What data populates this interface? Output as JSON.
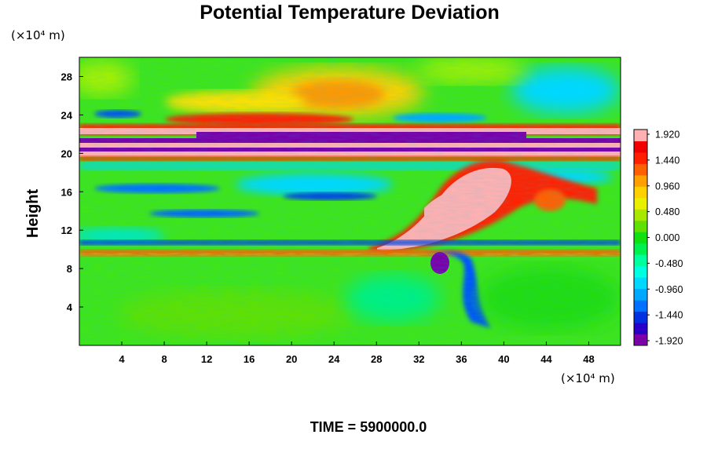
{
  "chart_data": {
    "type": "heatmap",
    "title": "Potential Temperature Deviation",
    "ylabel": "Height",
    "x_unit": "(×10⁴ m)",
    "y_unit": "(×10⁴ m)",
    "xlim": [
      0,
      51
    ],
    "ylim": [
      0,
      30
    ],
    "x_ticks": [
      4,
      8,
      12,
      16,
      20,
      24,
      28,
      32,
      36,
      40,
      44,
      48
    ],
    "y_ticks": [
      4,
      8,
      12,
      16,
      20,
      24,
      28
    ],
    "x_tick_labels": [
      "4",
      "8",
      "12",
      "16",
      "20",
      "24",
      "28",
      "32",
      "36",
      "40",
      "44",
      "48"
    ],
    "y_tick_labels": [
      "4",
      "8",
      "12",
      "16",
      "20",
      "24",
      "28"
    ],
    "colorbar": {
      "min": -1.92,
      "max": 1.92,
      "tick_labels": [
        "1.920",
        "1.440",
        "0.960",
        "0.480",
        "0.000",
        "-0.480",
        "-0.960",
        "-1.440",
        "-1.920"
      ],
      "colors": [
        "#7a00a8",
        "#2a00c8",
        "#0030e0",
        "#0070ff",
        "#00a8ff",
        "#00d8ff",
        "#00ffe0",
        "#00ffa0",
        "#00f050",
        "#10e010",
        "#60e000",
        "#a8e800",
        "#e8f000",
        "#ffd000",
        "#ffa000",
        "#ff6000",
        "#ff2000",
        "#f00000",
        "#ffb0b0"
      ]
    },
    "annotation": "TIME = 5900000.0"
  }
}
